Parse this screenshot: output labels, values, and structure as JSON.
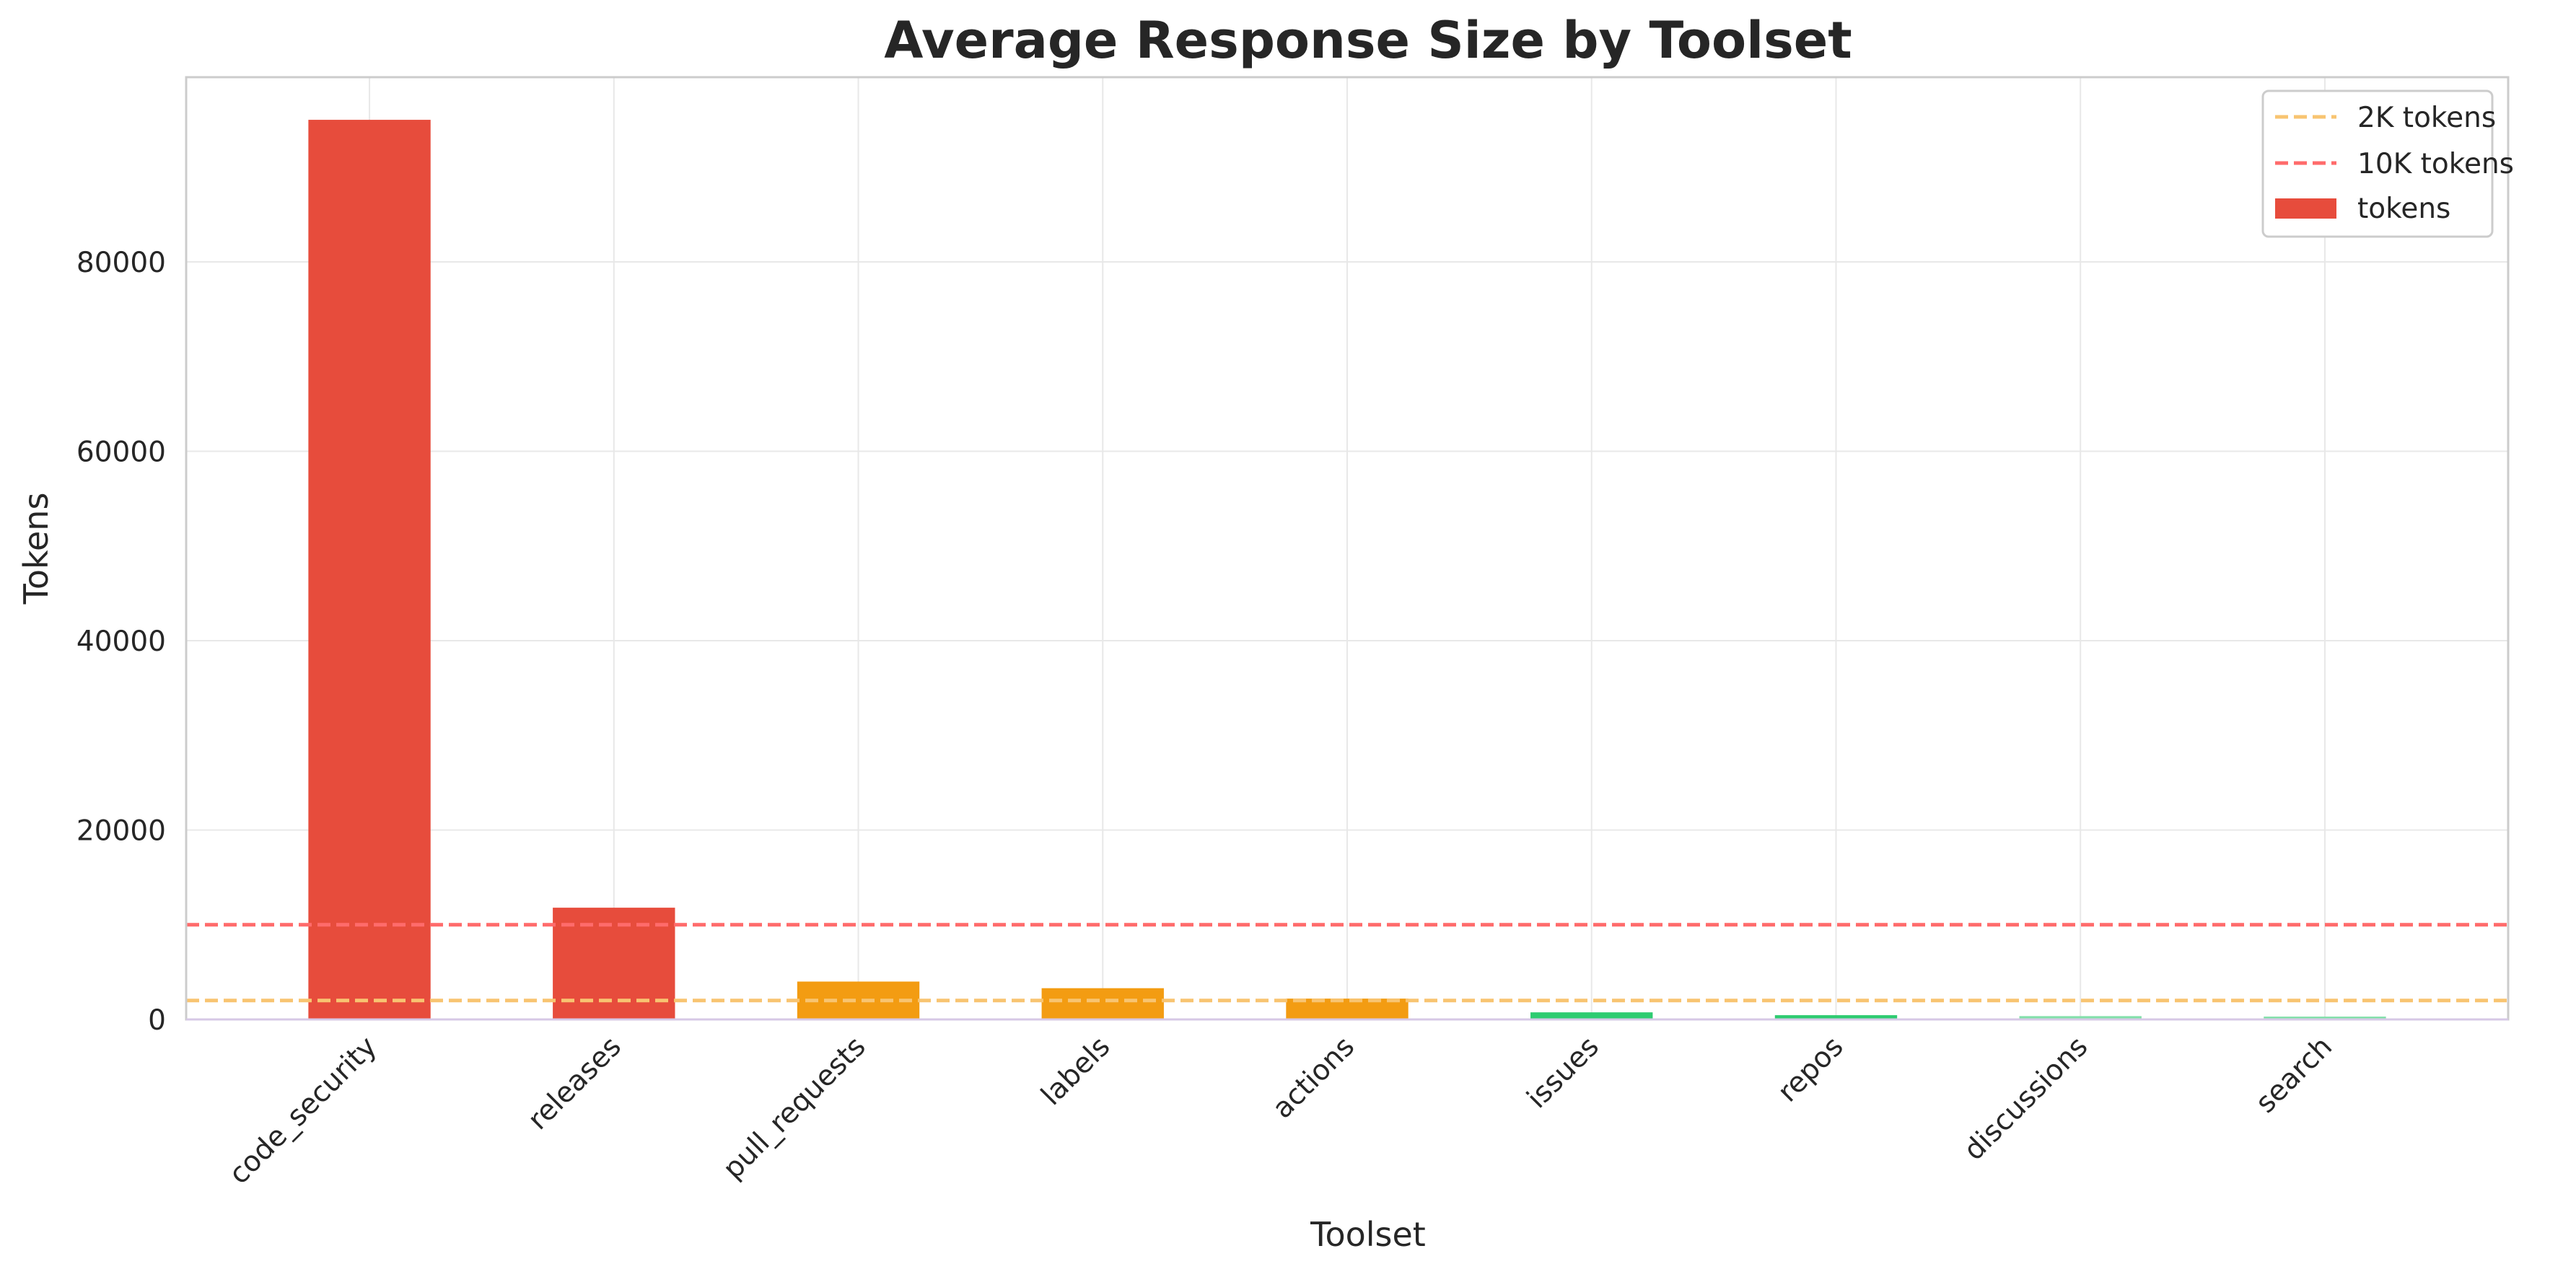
{
  "chart_data": {
    "type": "bar",
    "title": "Average Response Size by Toolset",
    "xlabel": "Toolset",
    "ylabel": "Tokens",
    "categories": [
      "code_security",
      "releases",
      "pull_requests",
      "labels",
      "actions",
      "issues",
      "repos",
      "discussions",
      "search"
    ],
    "series": [
      {
        "name": "tokens",
        "values": [
          95000,
          11800,
          4000,
          3300,
          2200,
          750,
          450,
          350,
          300
        ],
        "colors": [
          "#e74c3c",
          "#e74c3c",
          "#f39c12",
          "#f39c12",
          "#f39c12",
          "#2ecc71",
          "#2ecc71",
          "#82e0aa",
          "#82e0aa"
        ]
      }
    ],
    "reference_lines": [
      {
        "name": "2K tokens",
        "value": 2000,
        "color": "#f8c471",
        "style": "dashed"
      },
      {
        "name": "10K tokens",
        "value": 10000,
        "color": "#ff6b6b",
        "style": "dashed"
      }
    ],
    "yticks": [
      0,
      20000,
      40000,
      60000,
      80000
    ],
    "ylim": [
      0,
      100000
    ],
    "grid": true,
    "legend": {
      "position": "top-right",
      "entries": [
        "2K tokens",
        "10K tokens",
        "tokens"
      ]
    }
  }
}
